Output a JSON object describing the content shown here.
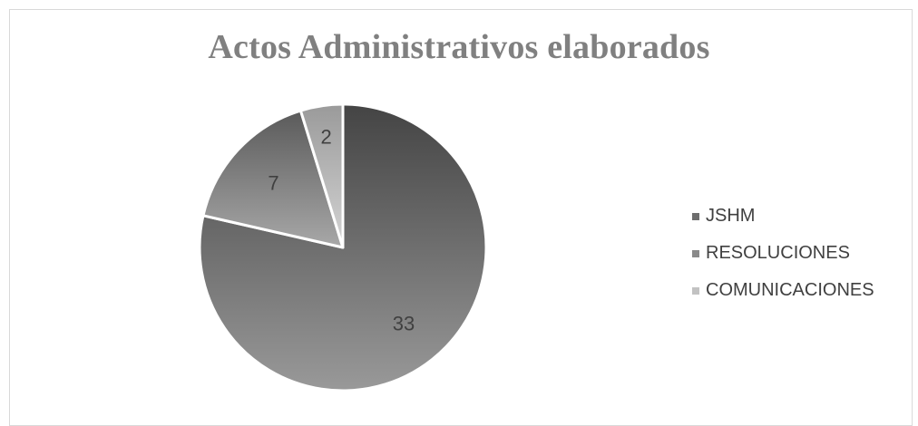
{
  "chart_data": {
    "type": "pie",
    "title": "Actos Administrativos elaborados",
    "categories": [
      "JSHM",
      "RESOLUCIONES",
      "COMUNICACIONES"
    ],
    "values": [
      33,
      7,
      2
    ],
    "colors": [
      "#6e6e6e",
      "#8a8a8a",
      "#c2c2c2"
    ],
    "legend_position": "right",
    "data_labels": [
      "33",
      "7",
      "2"
    ]
  }
}
